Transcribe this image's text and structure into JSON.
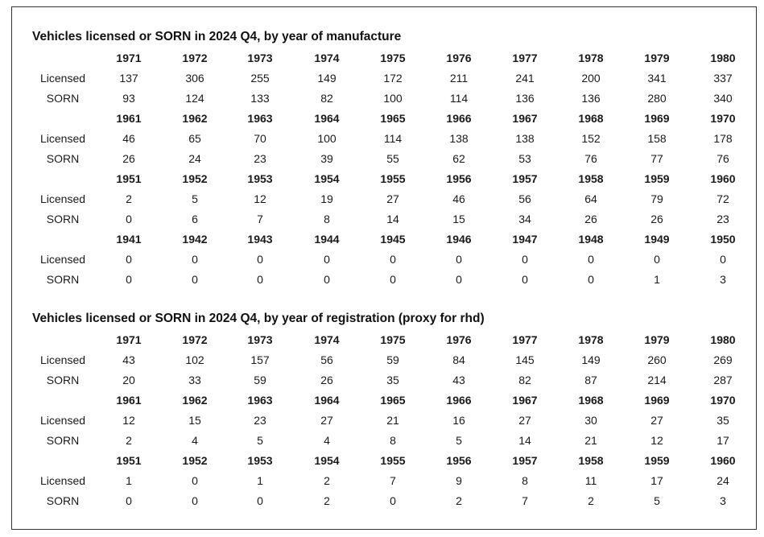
{
  "sections": [
    {
      "title": "Vehicles licensed or SORN in 2024 Q4, by year of manufacture",
      "blocks": [
        {
          "years": [
            "1971",
            "1972",
            "1973",
            "1974",
            "1975",
            "1976",
            "1977",
            "1978",
            "1979",
            "1980"
          ],
          "rows": [
            {
              "label": "Licensed",
              "values": [
                "137",
                "306",
                "255",
                "149",
                "172",
                "211",
                "241",
                "200",
                "341",
                "337"
              ]
            },
            {
              "label": "SORN",
              "values": [
                "93",
                "124",
                "133",
                "82",
                "100",
                "114",
                "136",
                "136",
                "280",
                "340"
              ]
            }
          ]
        },
        {
          "years": [
            "1961",
            "1962",
            "1963",
            "1964",
            "1965",
            "1966",
            "1967",
            "1968",
            "1969",
            "1970"
          ],
          "rows": [
            {
              "label": "Licensed",
              "values": [
                "46",
                "65",
                "70",
                "100",
                "114",
                "138",
                "138",
                "152",
                "158",
                "178"
              ]
            },
            {
              "label": "SORN",
              "values": [
                "26",
                "24",
                "23",
                "39",
                "55",
                "62",
                "53",
                "76",
                "77",
                "76"
              ]
            }
          ]
        },
        {
          "years": [
            "1951",
            "1952",
            "1953",
            "1954",
            "1955",
            "1956",
            "1957",
            "1958",
            "1959",
            "1960"
          ],
          "rows": [
            {
              "label": "Licensed",
              "values": [
                "2",
                "5",
                "12",
                "19",
                "27",
                "46",
                "56",
                "64",
                "79",
                "72"
              ]
            },
            {
              "label": "SORN",
              "values": [
                "0",
                "6",
                "7",
                "8",
                "14",
                "15",
                "34",
                "26",
                "26",
                "23"
              ]
            }
          ]
        },
        {
          "years": [
            "1941",
            "1942",
            "1943",
            "1944",
            "1945",
            "1946",
            "1947",
            "1948",
            "1949",
            "1950"
          ],
          "rows": [
            {
              "label": "Licensed",
              "values": [
                "0",
                "0",
                "0",
                "0",
                "0",
                "0",
                "0",
                "0",
                "0",
                "0"
              ]
            },
            {
              "label": "SORN",
              "values": [
                "0",
                "0",
                "0",
                "0",
                "0",
                "0",
                "0",
                "0",
                "1",
                "3"
              ]
            }
          ]
        }
      ]
    },
    {
      "title": "Vehicles licensed or SORN in 2024 Q4, by year of registration (proxy for rhd)",
      "blocks": [
        {
          "years": [
            "1971",
            "1972",
            "1973",
            "1974",
            "1975",
            "1976",
            "1977",
            "1978",
            "1979",
            "1980"
          ],
          "rows": [
            {
              "label": "Licensed",
              "values": [
                "43",
                "102",
                "157",
                "56",
                "59",
                "84",
                "145",
                "149",
                "260",
                "269"
              ]
            },
            {
              "label": "SORN",
              "values": [
                "20",
                "33",
                "59",
                "26",
                "35",
                "43",
                "82",
                "87",
                "214",
                "287"
              ]
            }
          ]
        },
        {
          "years": [
            "1961",
            "1962",
            "1963",
            "1964",
            "1965",
            "1966",
            "1967",
            "1968",
            "1969",
            "1970"
          ],
          "rows": [
            {
              "label": "Licensed",
              "values": [
                "12",
                "15",
                "23",
                "27",
                "21",
                "16",
                "27",
                "30",
                "27",
                "35"
              ]
            },
            {
              "label": "SORN",
              "values": [
                "2",
                "4",
                "5",
                "4",
                "8",
                "5",
                "14",
                "21",
                "12",
                "17"
              ]
            }
          ]
        },
        {
          "years": [
            "1951",
            "1952",
            "1953",
            "1954",
            "1955",
            "1956",
            "1957",
            "1958",
            "1959",
            "1960"
          ],
          "rows": [
            {
              "label": "Licensed",
              "values": [
                "1",
                "0",
                "1",
                "2",
                "7",
                "9",
                "8",
                "11",
                "17",
                "24"
              ]
            },
            {
              "label": "SORN",
              "values": [
                "0",
                "0",
                "0",
                "2",
                "0",
                "2",
                "7",
                "2",
                "5",
                "3"
              ]
            }
          ]
        }
      ]
    }
  ]
}
